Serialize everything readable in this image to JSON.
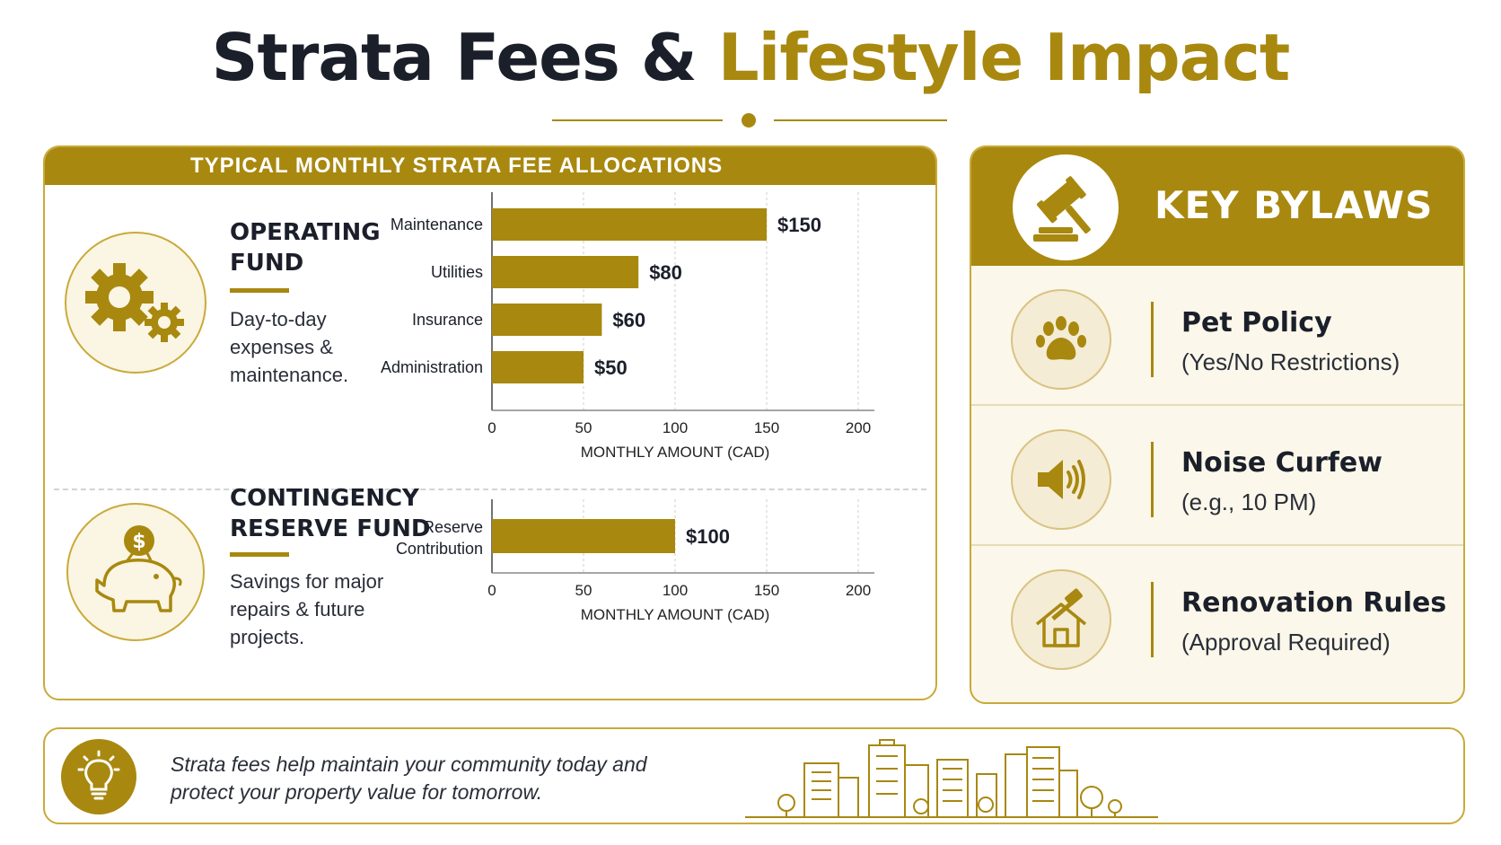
{
  "title": {
    "part1": "Strata Fees &",
    "part2": "Lifestyle Impact"
  },
  "colors": {
    "accent": "#a8880f",
    "dark": "#1b1f2a",
    "panel_bg": "#fbf7ea"
  },
  "allocations": {
    "header": "TYPICAL MONTHLY STRATA FEE ALLOCATIONS",
    "operating": {
      "title_line1": "OPERATING",
      "title_line2": "FUND",
      "description": "Day-to-day expenses & maintenance.",
      "icon": "gears-icon"
    },
    "contingency": {
      "title_line1": "CONTINGENCY",
      "title_line2": "RESERVE FUND",
      "description": "Savings for major repairs & future projects.",
      "icon": "piggy-bank-icon",
      "coin_symbol": "$"
    }
  },
  "chart_data": [
    {
      "type": "bar",
      "orientation": "horizontal",
      "categories": [
        "Maintenance",
        "Utilities",
        "Insurance",
        "Administration"
      ],
      "values": [
        150,
        80,
        60,
        50
      ],
      "value_labels": [
        "$150",
        "$80",
        "$60",
        "$50"
      ],
      "xlabel": "MONTHLY AMOUNT (CAD)",
      "xlim": [
        0,
        200
      ],
      "ticks": [
        0,
        50,
        100,
        150,
        200
      ],
      "grid": "vertical dashed"
    },
    {
      "type": "bar",
      "orientation": "horizontal",
      "categories": [
        [
          "Reserve",
          "Contribution"
        ]
      ],
      "values": [
        100
      ],
      "value_labels": [
        "$100"
      ],
      "xlabel": "MONTHLY AMOUNT (CAD)",
      "xlim": [
        0,
        200
      ],
      "ticks": [
        0,
        50,
        100,
        150,
        200
      ],
      "grid": "vertical dashed"
    }
  ],
  "bylaws": {
    "title": "KEY BYLAWS",
    "icon": "gavel-icon",
    "items": [
      {
        "title": "Pet Policy",
        "subtitle": "(Yes/No Restrictions)",
        "icon": "paw-icon"
      },
      {
        "title": "Noise Curfew",
        "subtitle": "(e.g., 10 PM)",
        "icon": "speaker-icon"
      },
      {
        "title": "Renovation Rules",
        "subtitle": "(Approval Required)",
        "icon": "hammer-house-icon"
      }
    ]
  },
  "footer": {
    "line1": "Strata fees help maintain your community today and",
    "line2": "protect your property value for tomorrow.",
    "icon": "lightbulb-icon",
    "illustration": "city-skyline-icon"
  }
}
